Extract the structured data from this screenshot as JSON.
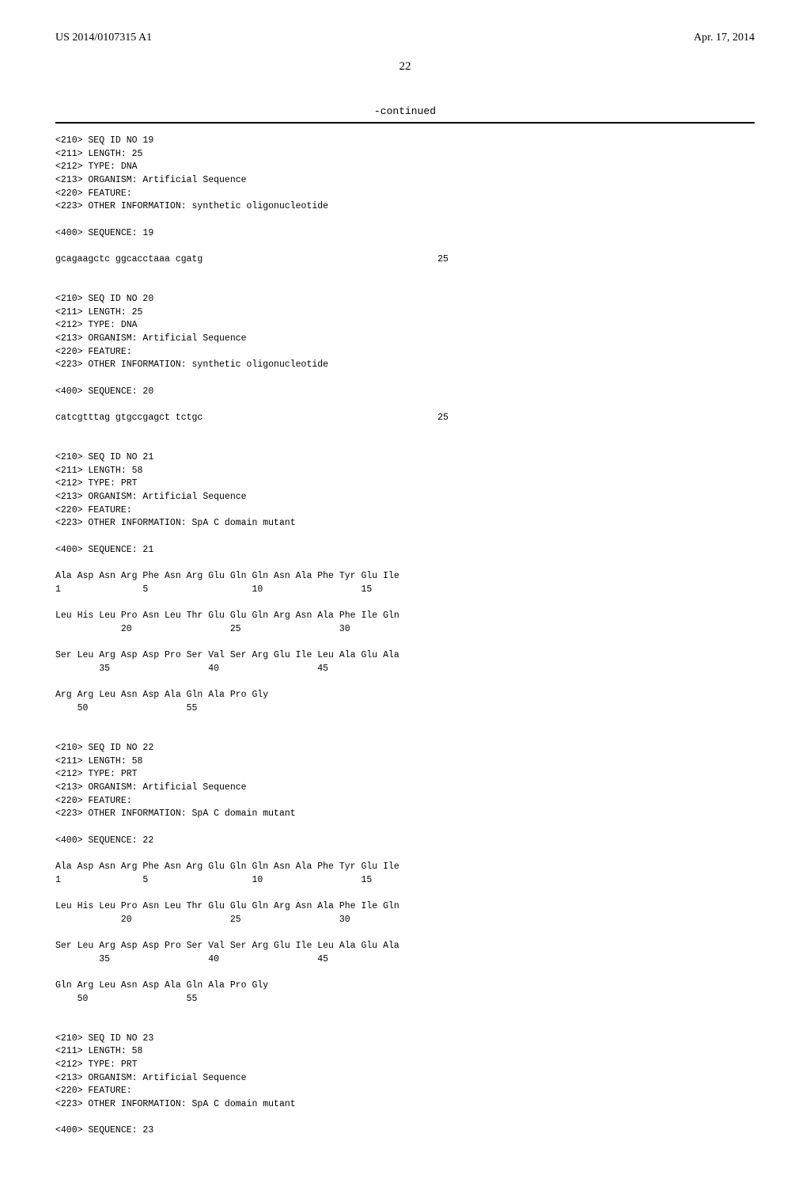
{
  "header": {
    "pub_no": "US 2014/0107315 A1",
    "pub_date": "Apr. 17, 2014",
    "page_number": "22",
    "continued": "-continued"
  },
  "entries": [
    {
      "meta": [
        "<210> SEQ ID NO 19",
        "<211> LENGTH: 25",
        "<212> TYPE: DNA",
        "<213> ORGANISM: Artificial Sequence",
        "<220> FEATURE:",
        "<223> OTHER INFORMATION: synthetic oligonucleotide"
      ],
      "seq_tag": "<400> SEQUENCE: 19",
      "seq_lines": [
        {
          "left": "gcagaagctc ggcacctaaa cgatg",
          "right": "25"
        }
      ]
    },
    {
      "meta": [
        "<210> SEQ ID NO 20",
        "<211> LENGTH: 25",
        "<212> TYPE: DNA",
        "<213> ORGANISM: Artificial Sequence",
        "<220> FEATURE:",
        "<223> OTHER INFORMATION: synthetic oligonucleotide"
      ],
      "seq_tag": "<400> SEQUENCE: 20",
      "seq_lines": [
        {
          "left": "catcgtttag gtgccgagct tctgc",
          "right": "25"
        }
      ]
    },
    {
      "meta": [
        "<210> SEQ ID NO 21",
        "<211> LENGTH: 58",
        "<212> TYPE: PRT",
        "<213> ORGANISM: Artificial Sequence",
        "<220> FEATURE:",
        "<223> OTHER INFORMATION: SpA C domain mutant"
      ],
      "seq_tag": "<400> SEQUENCE: 21",
      "prot_lines": [
        "Ala Asp Asn Arg Phe Asn Arg Glu Gln Gln Asn Ala Phe Tyr Glu Ile",
        "1               5                   10                  15",
        "",
        "Leu His Leu Pro Asn Leu Thr Glu Glu Gln Arg Asn Ala Phe Ile Gln",
        "            20                  25                  30",
        "",
        "Ser Leu Arg Asp Asp Pro Ser Val Ser Arg Glu Ile Leu Ala Glu Ala",
        "        35                  40                  45",
        "",
        "Arg Arg Leu Asn Asp Ala Gln Ala Pro Gly",
        "    50                  55"
      ]
    },
    {
      "meta": [
        "<210> SEQ ID NO 22",
        "<211> LENGTH: 58",
        "<212> TYPE: PRT",
        "<213> ORGANISM: Artificial Sequence",
        "<220> FEATURE:",
        "<223> OTHER INFORMATION: SpA C domain mutant"
      ],
      "seq_tag": "<400> SEQUENCE: 22",
      "prot_lines": [
        "Ala Asp Asn Arg Phe Asn Arg Glu Gln Gln Asn Ala Phe Tyr Glu Ile",
        "1               5                   10                  15",
        "",
        "Leu His Leu Pro Asn Leu Thr Glu Glu Gln Arg Asn Ala Phe Ile Gln",
        "            20                  25                  30",
        "",
        "Ser Leu Arg Asp Asp Pro Ser Val Ser Arg Glu Ile Leu Ala Glu Ala",
        "        35                  40                  45",
        "",
        "Gln Arg Leu Asn Asp Ala Gln Ala Pro Gly",
        "    50                  55"
      ]
    },
    {
      "meta": [
        "<210> SEQ ID NO 23",
        "<211> LENGTH: 58",
        "<212> TYPE: PRT",
        "<213> ORGANISM: Artificial Sequence",
        "<220> FEATURE:",
        "<223> OTHER INFORMATION: SpA C domain mutant"
      ],
      "seq_tag": "<400> SEQUENCE: 23"
    }
  ]
}
